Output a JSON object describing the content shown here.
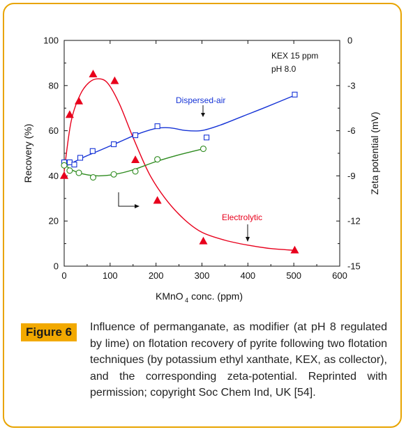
{
  "chart_data": {
    "type": "line",
    "xlabel_main": "KMnO",
    "xlabel_sub": "4",
    "xlabel_tail": " conc. (ppm)",
    "ylabel": "Recovery  (%)",
    "y2label": "Zeta potential (mV)",
    "xlim": [
      0,
      600
    ],
    "ylim": [
      0,
      100
    ],
    "y2lim": [
      -15,
      0
    ],
    "xticks": [
      "0",
      "100",
      "200",
      "300",
      "400",
      "500",
      "600"
    ],
    "yticks": [
      "0",
      "20",
      "40",
      "60",
      "80",
      "100"
    ],
    "y2ticks": [
      "-15",
      "-12",
      "-9",
      "-6",
      "-3",
      "0"
    ],
    "annotations": [
      "KEX 15 ppm",
      "pH 8.0"
    ],
    "series": [
      {
        "name": "Electrolytic",
        "axis": "left",
        "marker": "filled-triangle",
        "color": "#e8001c",
        "x": [
          0,
          12,
          32,
          63,
          110,
          155,
          203,
          303,
          502
        ],
        "y": [
          40,
          67,
          73,
          85,
          82,
          47,
          29,
          11,
          7
        ]
      },
      {
        "name": "Dispersed-air",
        "axis": "left",
        "marker": "open-square",
        "color": "#1533d6",
        "x": [
          0,
          12,
          22,
          35,
          62,
          108,
          155,
          203,
          310,
          502
        ],
        "y": [
          46,
          46,
          45,
          48,
          51,
          54,
          58,
          62,
          57,
          76
        ]
      },
      {
        "name": "",
        "axis": "right",
        "marker": "open-circle",
        "color": "#2e8b1f",
        "x": [
          0,
          12,
          32,
          63,
          108,
          155,
          203,
          303
        ],
        "y": [
          -8.3,
          -8.65,
          -8.8,
          -9.1,
          -8.9,
          -8.7,
          -7.9,
          -7.2
        ]
      }
    ]
  },
  "caption": {
    "label": "Figure 6",
    "text": "Influence of permanganate, as modifier (at pH 8 regulated by lime) on flotation recovery of pyrite following two flotation techniques (by potassium ethyl xanthate, KEX, as collector), and the corresponding zeta-potential. Reprinted with permission; copyright Soc Chem Ind, UK [54]."
  },
  "colors": {
    "accent": "#f2a900",
    "electrolytic": "#e8001c",
    "dispersed_air": "#1533d6",
    "zeta": "#2e8b1f"
  }
}
